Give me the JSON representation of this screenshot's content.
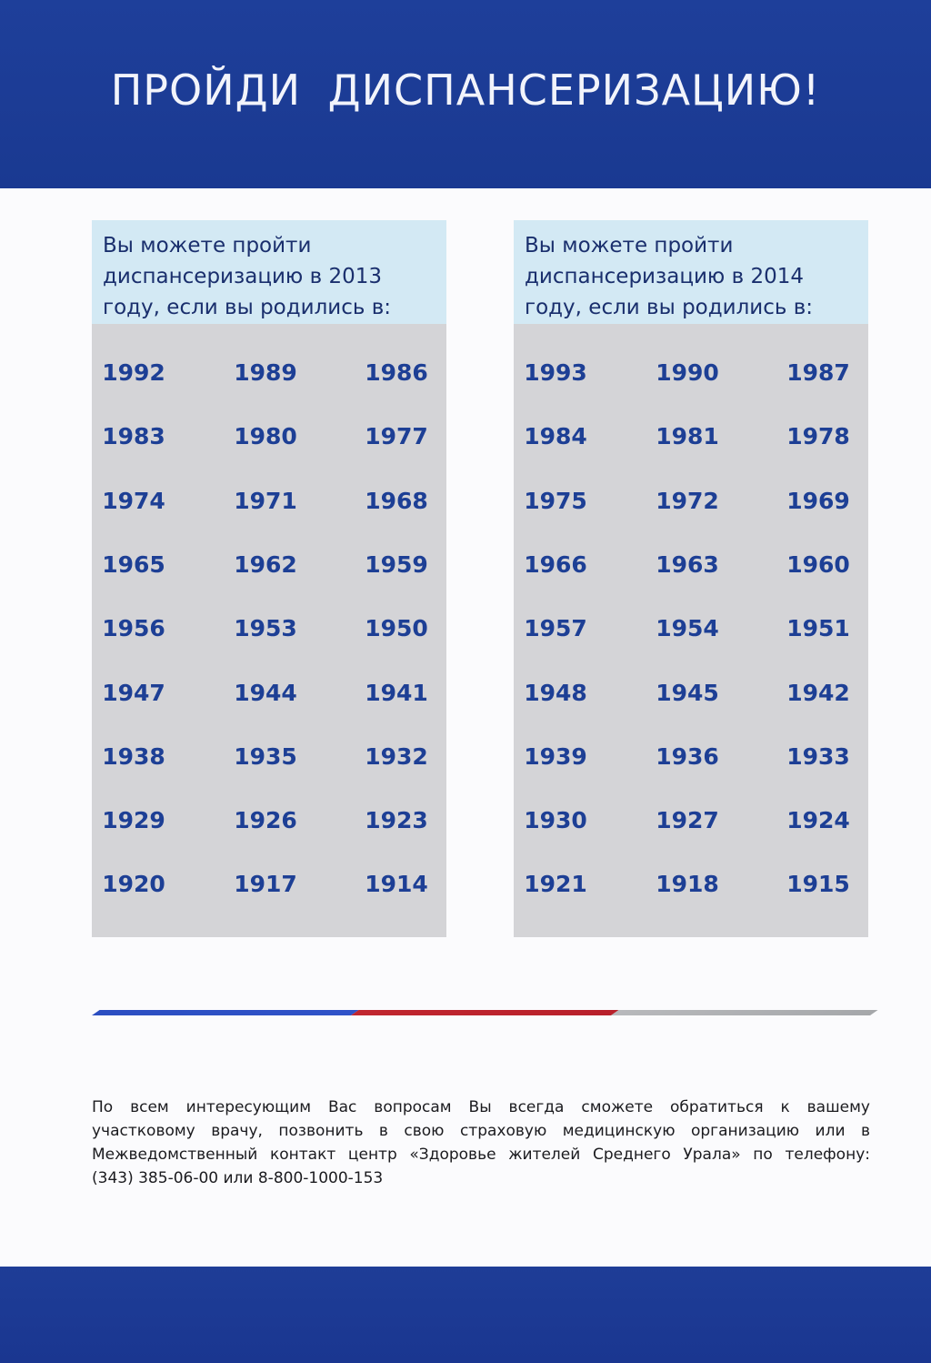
{
  "header": {
    "title": "ПРОЙДИ ДИСПАНСЕРИЗАЦИЮ!"
  },
  "cards": [
    {
      "heading": [
        "Вы можете пройти",
        "диспансеризацию в 2013",
        "году, если вы родились в:"
      ],
      "years": [
        "1992",
        "1989",
        "1986",
        "1983",
        "1980",
        "1977",
        "1974",
        "1971",
        "1968",
        "1965",
        "1962",
        "1959",
        "1956",
        "1953",
        "1950",
        "1947",
        "1944",
        "1941",
        "1938",
        "1935",
        "1932",
        "1929",
        "1926",
        "1923",
        "1920",
        "1917",
        "1914"
      ]
    },
    {
      "heading": [
        "Вы можете пройти",
        "диспансеризацию в 2014",
        "году, если вы родились в:"
      ],
      "years": [
        "1993",
        "1990",
        "1987",
        "1984",
        "1981",
        "1978",
        "1975",
        "1972",
        "1969",
        "1966",
        "1963",
        "1960",
        "1957",
        "1954",
        "1951",
        "1948",
        "1945",
        "1942",
        "1939",
        "1936",
        "1933",
        "1930",
        "1927",
        "1924",
        "1921",
        "1918",
        "1915"
      ]
    }
  ],
  "footer_note": {
    "lines": [
      "По всем интересующим Вас вопросам Вы всегда сможете обратиться к вашему",
      "участковому врачу, позвонить в свою страховую медицинскую организацию или в",
      "Межведомственный контакт центр «Здоровье жителей Среднего Урала» по телефону:",
      "(343) 385-06-00 или 8-800-1000-153"
    ]
  },
  "colors": {
    "brand_blue": "#1e3f9a",
    "year_blue": "#1d3f95",
    "card_head_bg": "#d3e9f4",
    "card_bg": "#d4d4d7",
    "divider_red": "#c0262f"
  }
}
